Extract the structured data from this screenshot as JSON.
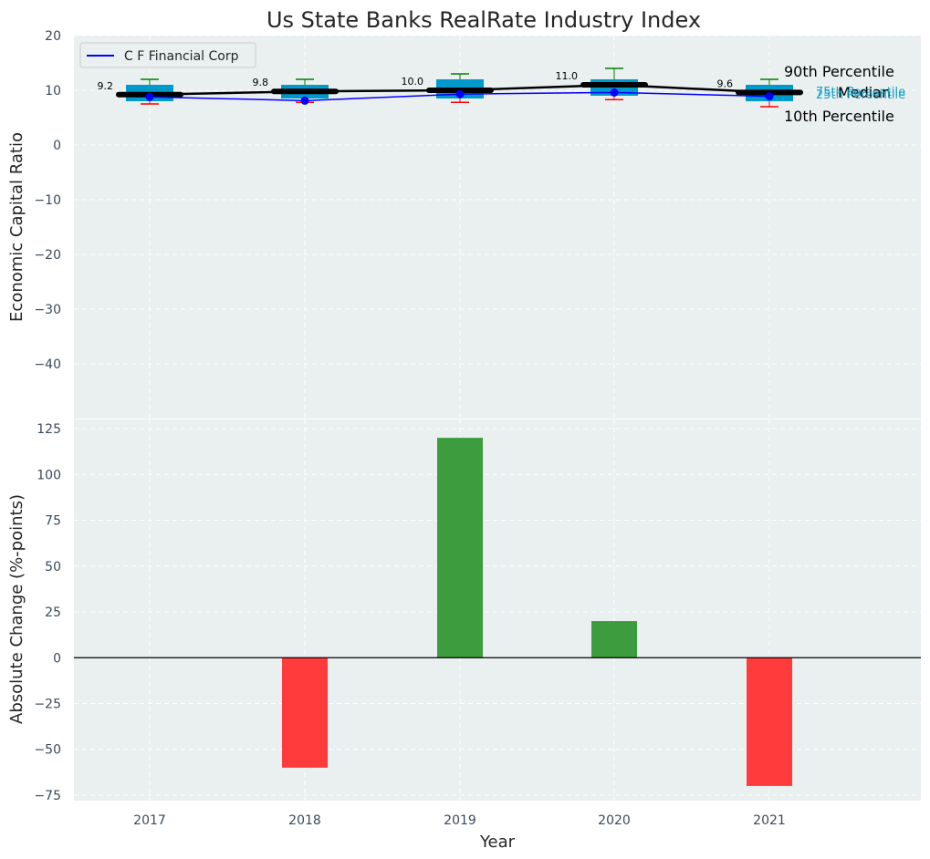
{
  "chart_data": [
    {
      "type": "box",
      "title": "Us State Banks RealRate Industry Index",
      "ylabel": "Economic Capital Ratio",
      "ylim": [
        -50,
        20
      ],
      "yticks": [
        20,
        10,
        0,
        -10,
        -20,
        -30,
        -40
      ],
      "grid": true,
      "legend": {
        "placement": "top-left",
        "entries": [
          "C F Financial Corp"
        ]
      },
      "categories": [
        "2017",
        "2018",
        "2019",
        "2020",
        "2021"
      ],
      "boxes": [
        {
          "year": "2017",
          "p10": 7.5,
          "p25": 8.0,
          "median": 9.2,
          "p75": 11.0,
          "p90": 12.0
        },
        {
          "year": "2018",
          "p10": 7.8,
          "p25": 8.5,
          "median": 9.8,
          "p75": 11.0,
          "p90": 12.0
        },
        {
          "year": "2019",
          "p10": 7.8,
          "p25": 8.5,
          "median": 10.0,
          "p75": 12.0,
          "p90": 13.0
        },
        {
          "year": "2020",
          "p10": 8.3,
          "p25": 9.0,
          "median": 11.0,
          "p75": 12.0,
          "p90": 14.0
        },
        {
          "year": "2021",
          "p10": 7.0,
          "p25": 8.0,
          "median": 9.6,
          "p75": 11.0,
          "p90": 12.0
        }
      ],
      "median_labels": [
        "9.2",
        "9.8",
        "10.0",
        "11.0",
        "9.6"
      ],
      "series": [
        {
          "name": "C F Financial Corp",
          "color": "#0000ff",
          "values": [
            8.8,
            8.1,
            9.3,
            9.6,
            8.9
          ]
        }
      ],
      "median_line_color": "#000000",
      "box_color": "#0099cc",
      "p90_color": "#008000",
      "p10_color": "#ff0000",
      "annotations": [
        "90th Percentile",
        "75th Percentile",
        "Median",
        "25th Percentile",
        "10th Percentile"
      ]
    },
    {
      "type": "bar",
      "xlabel": "Year",
      "ylabel": "Absolute Change (%-points)",
      "ylim": [
        -78,
        130
      ],
      "yticks": [
        125,
        100,
        75,
        50,
        25,
        0,
        -25,
        -50,
        -75
      ],
      "grid": true,
      "categories": [
        "2017",
        "2018",
        "2019",
        "2020",
        "2021"
      ],
      "values": [
        0,
        -60,
        120,
        20,
        -70
      ],
      "positive_color": "#3d9c3d",
      "negative_color": "#ff3b3b"
    }
  ]
}
